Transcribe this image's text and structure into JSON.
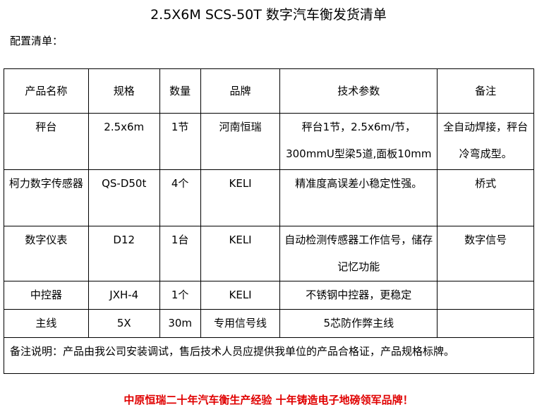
{
  "title": "2.5X6M SCS-50T 数字汽车衡发货清单",
  "subtitle": "配置清单：",
  "headers": [
    "产品名称",
    "规格",
    "数量",
    "品牌",
    "技术参数",
    "备注"
  ],
  "rows": [
    {
      "name": "秤台",
      "spec": "2.5x6m",
      "qty": "1节",
      "brand": "河南恒瑞",
      "tech": "秤台1节，2.5x6m/节，300mmU型梁5道,面板10mm",
      "remark": "全自动焊接，秤台冷弯成型。"
    },
    {
      "name": "柯力数字传感器",
      "spec": "QS-D50t",
      "qty": "4个",
      "brand": "KELI",
      "tech": "精准度高误差小稳定性强。",
      "remark": "桥式"
    },
    {
      "name": "数字仪表",
      "spec": "D12",
      "qty": "1台",
      "brand": "KELI",
      "tech": "自动检测传感器工作信号，储存记忆功能",
      "remark": "数字信号"
    },
    {
      "name": "中控器",
      "spec": "JXH-4",
      "qty": "1个",
      "brand": "KELI",
      "tech": "不锈钢中控器，更稳定",
      "remark": ""
    },
    {
      "name": "主线",
      "spec": "5X",
      "qty": "30m",
      "brand": "专用信号线",
      "tech": "5芯防作弊主线",
      "remark": ""
    }
  ],
  "note": "备注说明：产品由我公司安装调试，售后技术人员应提供我单位的产品合格证，产品规格标牌。",
  "slogan": "中原恒瑞二十年汽车衡生产经验  十年铸造电子地磅领军品牌！",
  "colors": {
    "slogan": "#e00000"
  }
}
